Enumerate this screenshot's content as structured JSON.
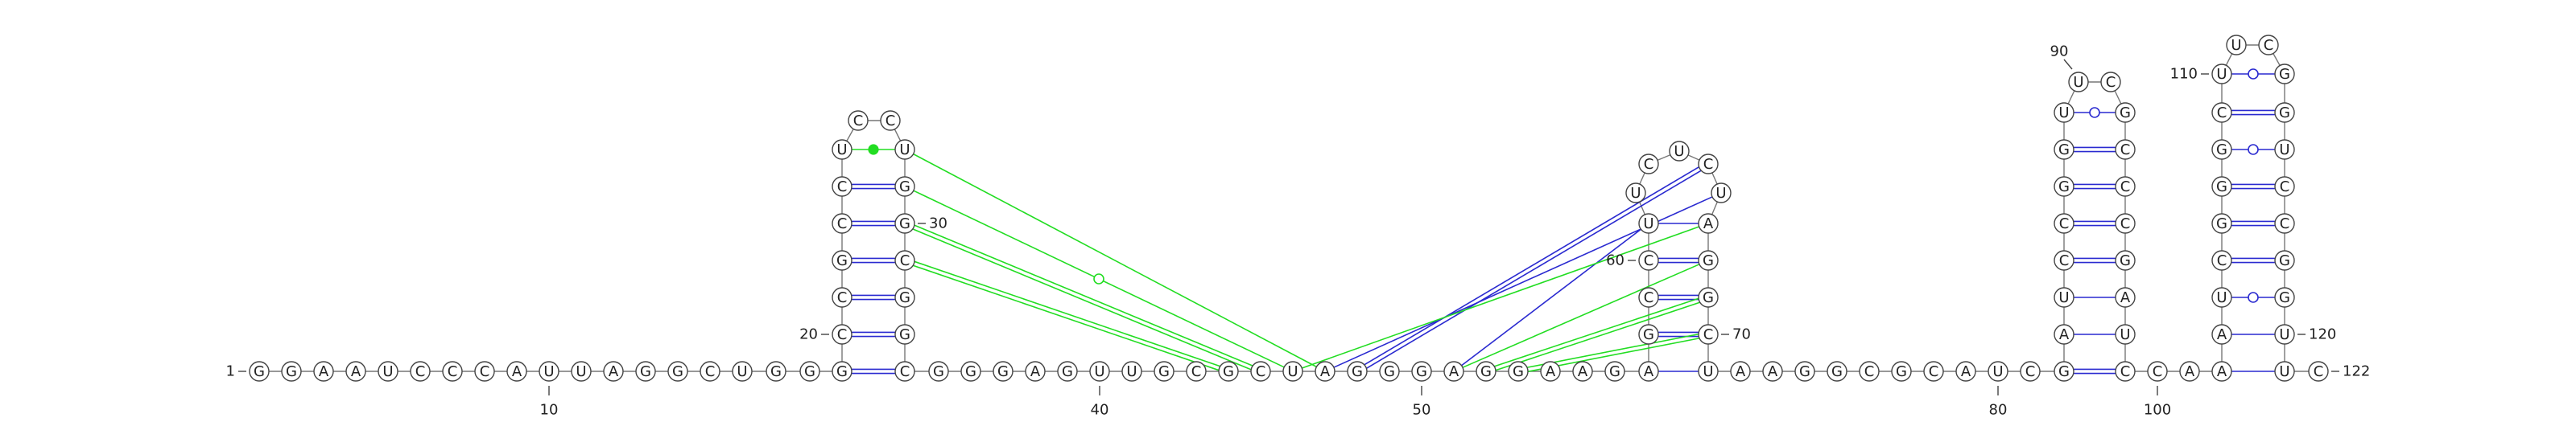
{
  "nucleotides": [
    "G",
    "G",
    "A",
    "A",
    "U",
    "C",
    "C",
    "C",
    "A",
    "U",
    "U",
    "A",
    "G",
    "G",
    "C",
    "U",
    "G",
    "G",
    "G",
    "C",
    "C",
    "G",
    "C",
    "C",
    "U",
    "C",
    "C",
    "U",
    "G",
    "G",
    "C",
    "G",
    "G",
    "C",
    "G",
    "G",
    "G",
    "A",
    "G",
    "U",
    "U",
    "G",
    "C",
    "G",
    "C",
    "U",
    "A",
    "G",
    "G",
    "G",
    "A",
    "G",
    "G",
    "A",
    "A",
    "G",
    "A",
    "G",
    "C",
    "C",
    "U",
    "U",
    "C",
    "U",
    "C",
    "U",
    "A",
    "G",
    "G",
    "C",
    "U",
    "A",
    "A",
    "G",
    "G",
    "C",
    "G",
    "C",
    "A",
    "U",
    "C",
    "G",
    "A",
    "U",
    "C",
    "C",
    "G",
    "G",
    "U",
    "U",
    "C",
    "G",
    "C",
    "C",
    "C",
    "G",
    "A",
    "U",
    "C",
    "C",
    "A",
    "A",
    "A",
    "U",
    "C",
    "G",
    "G",
    "G",
    "C",
    "U",
    "U",
    "C",
    "G",
    "G",
    "U",
    "C",
    "C",
    "G",
    "G",
    "U",
    "U",
    "C"
  ],
  "position_labels": [
    1,
    10,
    20,
    30,
    40,
    50,
    60,
    70,
    80,
    90,
    100,
    110,
    120,
    122
  ]
}
